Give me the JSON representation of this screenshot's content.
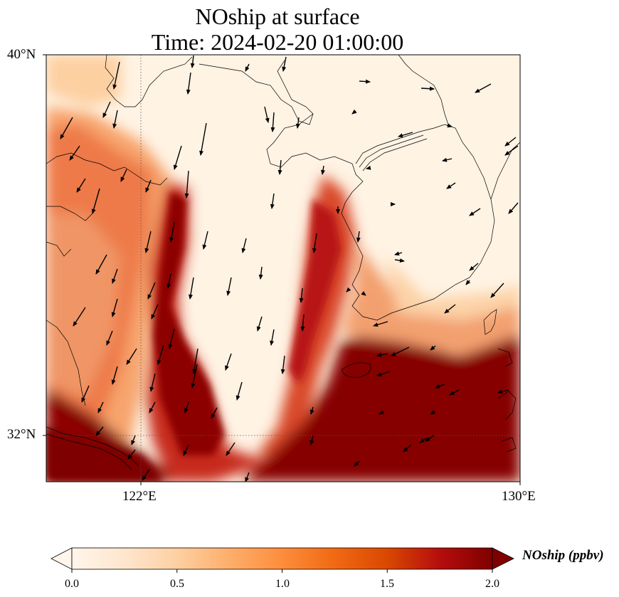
{
  "title": {
    "line1": "NOship at surface",
    "line2": "Time: 2024-02-20 01:00:00"
  },
  "lat_ticks": [
    "40°N",
    "32°N"
  ],
  "lon_ticks": [
    "122°E",
    "130°E"
  ],
  "colorbar": {
    "label": "NOship (ppbv)",
    "ticks": [
      "0.0",
      "0.5",
      "1.0",
      "1.5",
      "2.0"
    ],
    "min": 0,
    "max": 2,
    "colors": [
      "#fff5eb",
      "#fee6ce",
      "#fdd0a2",
      "#fdae6b",
      "#fd8d3c",
      "#f16913",
      "#d94801",
      "#b50d0d",
      "#7f0000"
    ]
  }
}
